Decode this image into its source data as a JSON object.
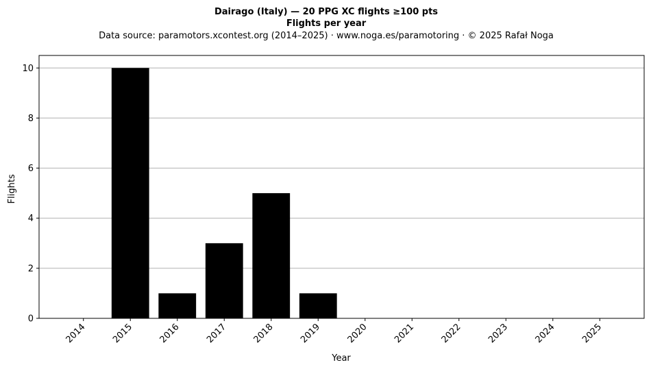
{
  "chart_data": {
    "type": "bar",
    "title_line1": "Dairago (Italy)  —  20 PPG XC flights ≥100 pts",
    "title_line2": "Flights per year",
    "subtitle": "Data source: paramotors.xcontest.org (2014–2025)  ·  www.noga.es/paramotoring  ·  © 2025 Rafał Noga",
    "xlabel": "Year",
    "ylabel": "Flights",
    "categories": [
      "2014",
      "2015",
      "2016",
      "2017",
      "2018",
      "2019",
      "2020",
      "2021",
      "2022",
      "2023",
      "2024",
      "2025"
    ],
    "values": [
      0,
      10,
      1,
      3,
      5,
      1,
      0,
      0,
      0,
      0,
      0,
      0
    ],
    "ylim": [
      0,
      10.5
    ],
    "yticks": [
      0,
      2,
      4,
      6,
      8,
      10
    ],
    "grid": "horizontal",
    "bar_color": "#000000",
    "grid_color": "#b0b0b0"
  }
}
